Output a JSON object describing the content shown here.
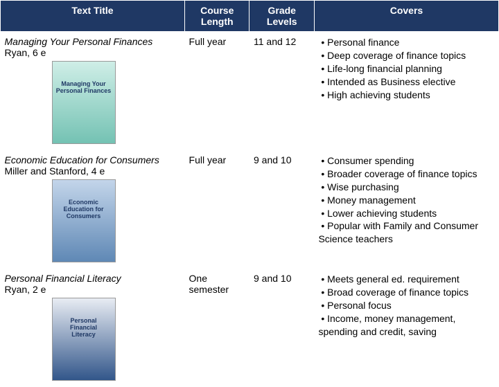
{
  "header": {
    "title": "Text Title",
    "length": "Course Length",
    "grades": "Grade Levels",
    "covers": "Covers"
  },
  "rows": [
    {
      "title": "Managing Your Personal Finances",
      "author": "Ryan, 6 e",
      "thumb_label": "Managing Your\nPersonal Finances",
      "length": "Full year",
      "grades": "11 and 12",
      "bullets": [
        "Personal finance",
        "Deep coverage of finance topics",
        "Life-long financial planning",
        "Intended as Business elective",
        "High achieving students"
      ]
    },
    {
      "title": "Economic Education for Consumers",
      "author": "Miller and Stanford, 4 e",
      "thumb_label": "Economic\nEducation for\nConsumers",
      "length": "Full year",
      "grades": "9 and 10",
      "bullets": [
        "Consumer spending",
        "Broader coverage of finance topics",
        "Wise purchasing",
        "Money management",
        "Lower achieving students",
        "Popular with Family and Consumer Science teachers"
      ]
    },
    {
      "title": "Personal Financial Literacy",
      "author": "Ryan, 2 e",
      "thumb_label": "Personal\nFinancial\nLiteracy",
      "length": "One semester",
      "grades": "9 and 10",
      "bullets": [
        "Meets general ed. requirement",
        "Broad coverage of finance topics",
        "Personal focus",
        "Income, money management, spending and credit, saving"
      ]
    }
  ],
  "colors": {
    "header_bg": "#1f3864",
    "header_fg": "#ffffff"
  }
}
